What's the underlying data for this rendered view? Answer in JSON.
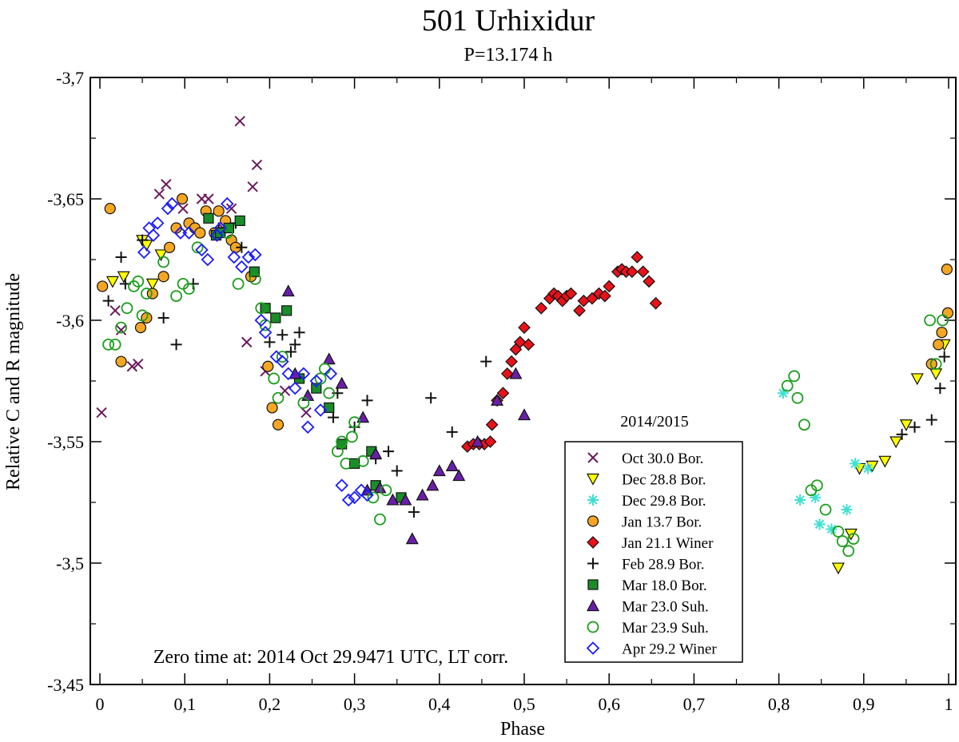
{
  "chart_data": {
    "type": "scatter",
    "title": "501 Urhixidur",
    "subtitle": "P=13.174 h",
    "xlabel": "Phase",
    "ylabel": "Relative C and R magnitude",
    "xlim": [
      0,
      1
    ],
    "ylim": [
      -3.7,
      -3.45
    ],
    "y_inverted": true,
    "xticks": [
      "0",
      "0,1",
      "0,2",
      "0,3",
      "0,4",
      "0,5",
      "0,6",
      "0,7",
      "0,8",
      "0,9",
      "1"
    ],
    "yticks": [
      "-3,7",
      "-3,65",
      "-3,6",
      "-3,55",
      "-3,5",
      "-3,45"
    ],
    "legend_title": "2014/2015",
    "legend_position": "bottom-right",
    "annotation": "Zero time at: 2014 Oct 29.9471 UTC, LT corr.",
    "series": [
      {
        "name": "Oct 30.0 Bor.",
        "marker": "x",
        "color": "#6b1a5e",
        "fill": "none",
        "points": [
          [
            0.002,
            -3.562
          ],
          [
            0.018,
            -3.604
          ],
          [
            0.025,
            -3.596
          ],
          [
            0.038,
            -3.581
          ],
          [
            0.045,
            -3.582
          ],
          [
            0.07,
            -3.652
          ],
          [
            0.078,
            -3.656
          ],
          [
            0.098,
            -3.646
          ],
          [
            0.12,
            -3.65
          ],
          [
            0.128,
            -3.65
          ],
          [
            0.145,
            -3.638
          ],
          [
            0.155,
            -3.646
          ],
          [
            0.165,
            -3.682
          ],
          [
            0.173,
            -3.591
          ],
          [
            0.18,
            -3.655
          ],
          [
            0.185,
            -3.664
          ],
          [
            0.195,
            -3.579
          ],
          [
            0.218,
            -3.571
          ],
          [
            0.243,
            -3.562
          ]
        ]
      },
      {
        "name": "Dec 28.8 Bor.",
        "marker": "tri-down",
        "color": "#111",
        "fill": "#ffff00",
        "points": [
          [
            0.015,
            -3.616
          ],
          [
            0.028,
            -3.618
          ],
          [
            0.05,
            -3.633
          ],
          [
            0.055,
            -3.631
          ],
          [
            0.062,
            -3.615
          ],
          [
            0.072,
            -3.627
          ],
          [
            0.87,
            -3.498
          ],
          [
            0.885,
            -3.512
          ],
          [
            0.895,
            -3.539
          ],
          [
            0.91,
            -3.54
          ],
          [
            0.925,
            -3.542
          ],
          [
            0.938,
            -3.55
          ],
          [
            0.95,
            -3.557
          ],
          [
            0.963,
            -3.576
          ],
          [
            0.985,
            -3.578
          ],
          [
            0.995,
            -3.59
          ]
        ]
      },
      {
        "name": "Dec 29.8 Bor.",
        "marker": "asterisk",
        "color": "#40e0d0",
        "fill": "none",
        "points": [
          [
            0.805,
            -3.57
          ],
          [
            0.825,
            -3.526
          ],
          [
            0.843,
            -3.527
          ],
          [
            0.848,
            -3.516
          ],
          [
            0.862,
            -3.514
          ],
          [
            0.88,
            -3.522
          ],
          [
            0.89,
            -3.541
          ],
          [
            0.905,
            -3.539
          ]
        ]
      },
      {
        "name": "Jan 13.7 Bor.",
        "marker": "circle",
        "color": "#111",
        "fill": "#f5a623",
        "points": [
          [
            0.003,
            -3.614
          ],
          [
            0.012,
            -3.646
          ],
          [
            0.025,
            -3.583
          ],
          [
            0.048,
            -3.597
          ],
          [
            0.055,
            -3.601
          ],
          [
            0.062,
            -3.611
          ],
          [
            0.075,
            -3.618
          ],
          [
            0.082,
            -3.63
          ],
          [
            0.09,
            -3.638
          ],
          [
            0.097,
            -3.65
          ],
          [
            0.105,
            -3.64
          ],
          [
            0.112,
            -3.638
          ],
          [
            0.118,
            -3.636
          ],
          [
            0.125,
            -3.645
          ],
          [
            0.135,
            -3.636
          ],
          [
            0.14,
            -3.645
          ],
          [
            0.148,
            -3.641
          ],
          [
            0.155,
            -3.633
          ],
          [
            0.16,
            -3.63
          ],
          [
            0.178,
            -3.618
          ],
          [
            0.198,
            -3.581
          ],
          [
            0.203,
            -3.564
          ],
          [
            0.21,
            -3.557
          ],
          [
            0.98,
            -3.582
          ],
          [
            0.988,
            -3.59
          ],
          [
            0.992,
            -3.595
          ],
          [
            0.998,
            -3.621
          ],
          [
            0.999,
            -3.603
          ]
        ]
      },
      {
        "name": "Jan 21.1 Winer",
        "marker": "diamond",
        "color": "#111",
        "fill": "#e8121a",
        "points": [
          [
            0.433,
            -3.548
          ],
          [
            0.44,
            -3.549
          ],
          [
            0.447,
            -3.549
          ],
          [
            0.453,
            -3.549
          ],
          [
            0.46,
            -3.55
          ],
          [
            0.462,
            -3.557
          ],
          [
            0.468,
            -3.567
          ],
          [
            0.475,
            -3.57
          ],
          [
            0.48,
            -3.578
          ],
          [
            0.485,
            -3.583
          ],
          [
            0.49,
            -3.588
          ],
          [
            0.495,
            -3.591
          ],
          [
            0.5,
            -3.597
          ],
          [
            0.505,
            -3.59
          ],
          [
            0.52,
            -3.605
          ],
          [
            0.53,
            -3.609
          ],
          [
            0.535,
            -3.611
          ],
          [
            0.54,
            -3.61
          ],
          [
            0.545,
            -3.608
          ],
          [
            0.55,
            -3.61
          ],
          [
            0.555,
            -3.611
          ],
          [
            0.565,
            -3.604
          ],
          [
            0.57,
            -3.608
          ],
          [
            0.58,
            -3.609
          ],
          [
            0.588,
            -3.611
          ],
          [
            0.595,
            -3.61
          ],
          [
            0.6,
            -3.614
          ],
          [
            0.61,
            -3.62
          ],
          [
            0.615,
            -3.621
          ],
          [
            0.62,
            -3.62
          ],
          [
            0.627,
            -3.62
          ],
          [
            0.633,
            -3.626
          ],
          [
            0.64,
            -3.62
          ],
          [
            0.647,
            -3.616
          ],
          [
            0.655,
            -3.607
          ]
        ]
      },
      {
        "name": "Feb 28.9 Bor.",
        "marker": "plus",
        "color": "#111",
        "fill": "none",
        "points": [
          [
            0.01,
            -3.608
          ],
          [
            0.025,
            -3.626
          ],
          [
            0.03,
            -3.615
          ],
          [
            0.05,
            -3.633
          ],
          [
            0.075,
            -3.601
          ],
          [
            0.09,
            -3.59
          ],
          [
            0.11,
            -3.615
          ],
          [
            0.14,
            -3.638
          ],
          [
            0.16,
            -3.64
          ],
          [
            0.167,
            -3.63
          ],
          [
            0.2,
            -3.591
          ],
          [
            0.215,
            -3.594
          ],
          [
            0.225,
            -3.587
          ],
          [
            0.23,
            -3.59
          ],
          [
            0.235,
            -3.595
          ],
          [
            0.275,
            -3.56
          ],
          [
            0.28,
            -3.57
          ],
          [
            0.3,
            -3.556
          ],
          [
            0.315,
            -3.567
          ],
          [
            0.325,
            -3.543
          ],
          [
            0.34,
            -3.546
          ],
          [
            0.35,
            -3.538
          ],
          [
            0.37,
            -3.521
          ],
          [
            0.39,
            -3.568
          ],
          [
            0.415,
            -3.554
          ],
          [
            0.455,
            -3.583
          ],
          [
            0.945,
            -3.553
          ],
          [
            0.96,
            -3.556
          ],
          [
            0.98,
            -3.559
          ],
          [
            0.99,
            -3.572
          ],
          [
            0.995,
            -3.585
          ]
        ]
      },
      {
        "name": "Mar 18.0 Bor.",
        "marker": "square",
        "color": "#111",
        "fill": "#1a8c2a",
        "points": [
          [
            0.128,
            -3.642
          ],
          [
            0.137,
            -3.635
          ],
          [
            0.142,
            -3.636
          ],
          [
            0.152,
            -3.638
          ],
          [
            0.165,
            -3.641
          ],
          [
            0.182,
            -3.62
          ],
          [
            0.195,
            -3.605
          ],
          [
            0.207,
            -3.601
          ],
          [
            0.22,
            -3.604
          ],
          [
            0.235,
            -3.576
          ],
          [
            0.255,
            -3.572
          ],
          [
            0.27,
            -3.564
          ],
          [
            0.285,
            -3.549
          ],
          [
            0.3,
            -3.541
          ],
          [
            0.32,
            -3.546
          ],
          [
            0.325,
            -3.532
          ],
          [
            0.355,
            -3.527
          ]
        ]
      },
      {
        "name": "Mar 23.0 Suh.",
        "marker": "tri-up",
        "color": "#111",
        "fill": "#6a1fa8",
        "points": [
          [
            0.222,
            -3.612
          ],
          [
            0.23,
            -3.578
          ],
          [
            0.245,
            -3.569
          ],
          [
            0.27,
            -3.584
          ],
          [
            0.285,
            -3.574
          ],
          [
            0.31,
            -3.56
          ],
          [
            0.315,
            -3.53
          ],
          [
            0.325,
            -3.545
          ],
          [
            0.33,
            -3.531
          ],
          [
            0.345,
            -3.526
          ],
          [
            0.36,
            -3.526
          ],
          [
            0.368,
            -3.51
          ],
          [
            0.38,
            -3.528
          ],
          [
            0.392,
            -3.532
          ],
          [
            0.4,
            -3.538
          ],
          [
            0.415,
            -3.54
          ],
          [
            0.423,
            -3.536
          ],
          [
            0.445,
            -3.55
          ],
          [
            0.468,
            -3.567
          ],
          [
            0.49,
            -3.578
          ],
          [
            0.5,
            -3.561
          ]
        ]
      },
      {
        "name": "Mar 23.9 Suh.",
        "marker": "circle-open",
        "color": "#1a9e1a",
        "fill": "none",
        "points": [
          [
            0.01,
            -3.59
          ],
          [
            0.018,
            -3.59
          ],
          [
            0.025,
            -3.597
          ],
          [
            0.032,
            -3.605
          ],
          [
            0.04,
            -3.614
          ],
          [
            0.045,
            -3.616
          ],
          [
            0.05,
            -3.602
          ],
          [
            0.055,
            -3.611
          ],
          [
            0.075,
            -3.624
          ],
          [
            0.09,
            -3.61
          ],
          [
            0.098,
            -3.615
          ],
          [
            0.105,
            -3.613
          ],
          [
            0.115,
            -3.63
          ],
          [
            0.15,
            -3.636
          ],
          [
            0.163,
            -3.615
          ],
          [
            0.183,
            -3.617
          ],
          [
            0.19,
            -3.605
          ],
          [
            0.195,
            -3.598
          ],
          [
            0.205,
            -3.576
          ],
          [
            0.21,
            -3.568
          ],
          [
            0.215,
            -3.585
          ],
          [
            0.24,
            -3.566
          ],
          [
            0.26,
            -3.576
          ],
          [
            0.265,
            -3.58
          ],
          [
            0.27,
            -3.57
          ],
          [
            0.28,
            -3.546
          ],
          [
            0.285,
            -3.55
          ],
          [
            0.29,
            -3.541
          ],
          [
            0.297,
            -3.552
          ],
          [
            0.3,
            -3.558
          ],
          [
            0.31,
            -3.542
          ],
          [
            0.322,
            -3.527
          ],
          [
            0.33,
            -3.518
          ],
          [
            0.337,
            -3.53
          ],
          [
            0.81,
            -3.573
          ],
          [
            0.818,
            -3.577
          ],
          [
            0.822,
            -3.568
          ],
          [
            0.83,
            -3.557
          ],
          [
            0.838,
            -3.53
          ],
          [
            0.845,
            -3.532
          ],
          [
            0.855,
            -3.522
          ],
          [
            0.87,
            -3.513
          ],
          [
            0.875,
            -3.509
          ],
          [
            0.882,
            -3.505
          ],
          [
            0.888,
            -3.51
          ],
          [
            0.978,
            -3.6
          ],
          [
            0.985,
            -3.582
          ],
          [
            0.993,
            -3.6
          ]
        ]
      },
      {
        "name": "Apr 29.2 Winer",
        "marker": "diamond-open",
        "color": "#1a1aff",
        "fill": "none",
        "points": [
          [
            0.052,
            -3.628
          ],
          [
            0.058,
            -3.638
          ],
          [
            0.063,
            -3.635
          ],
          [
            0.068,
            -3.64
          ],
          [
            0.08,
            -3.646
          ],
          [
            0.085,
            -3.648
          ],
          [
            0.095,
            -3.636
          ],
          [
            0.105,
            -3.636
          ],
          [
            0.12,
            -3.629
          ],
          [
            0.127,
            -3.625
          ],
          [
            0.138,
            -3.635
          ],
          [
            0.142,
            -3.638
          ],
          [
            0.15,
            -3.648
          ],
          [
            0.158,
            -3.626
          ],
          [
            0.167,
            -3.622
          ],
          [
            0.175,
            -3.626
          ],
          [
            0.183,
            -3.627
          ],
          [
            0.19,
            -3.6
          ],
          [
            0.195,
            -3.595
          ],
          [
            0.208,
            -3.585
          ],
          [
            0.215,
            -3.583
          ],
          [
            0.222,
            -3.578
          ],
          [
            0.23,
            -3.572
          ],
          [
            0.24,
            -3.578
          ],
          [
            0.245,
            -3.556
          ],
          [
            0.255,
            -3.575
          ],
          [
            0.26,
            -3.563
          ],
          [
            0.272,
            -3.578
          ],
          [
            0.285,
            -3.532
          ],
          [
            0.293,
            -3.526
          ],
          [
            0.3,
            -3.527
          ],
          [
            0.308,
            -3.53
          ],
          [
            0.315,
            -3.528
          ]
        ]
      }
    ]
  }
}
